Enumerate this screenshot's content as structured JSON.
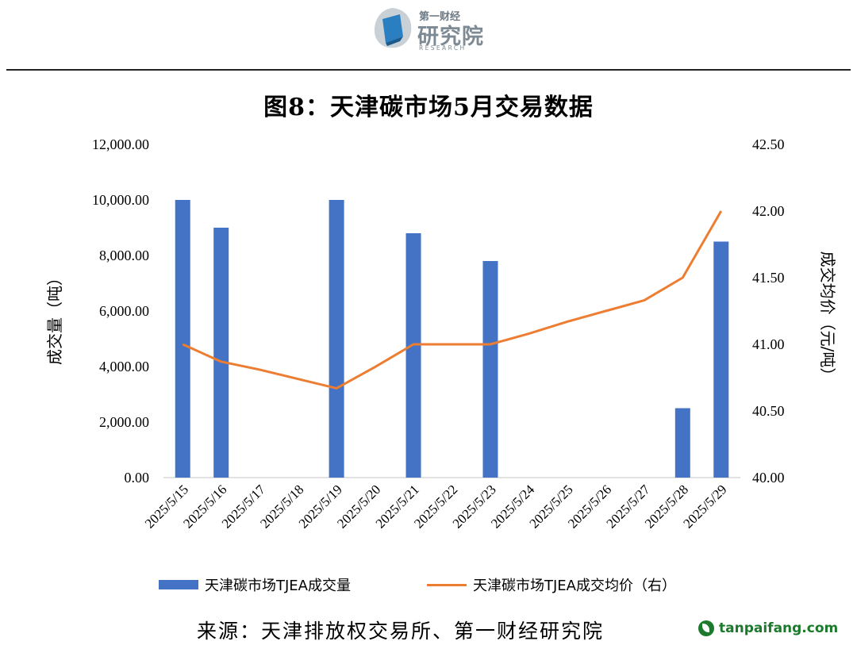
{
  "logo": {
    "small_text": "第一财经",
    "big_text": "研究院",
    "english_text": "RESEARCH"
  },
  "title": "图8：天津碳市场5月交易数据",
  "source": "来源：天津排放权交易所、第一财经研究院",
  "watermark": "tanpaifang.com",
  "colors": {
    "bar": "#4472C4",
    "line": "#ED7D31",
    "rule": "#222222"
  },
  "chart_data": {
    "type": "bar",
    "categories": [
      "2025/5/15",
      "2025/5/16",
      "2025/5/17",
      "2025/5/18",
      "2025/5/19",
      "2025/5/20",
      "2025/5/21",
      "2025/5/22",
      "2025/5/23",
      "2025/5/24",
      "2025/5/25",
      "2025/5/26",
      "2025/5/27",
      "2025/5/28",
      "2025/5/29"
    ],
    "ylabel_left": "成交量（吨）",
    "ylabel_right": "成交均价（元/吨）",
    "ylim_left": [
      0,
      12000
    ],
    "ylim_right": [
      40,
      42.5
    ],
    "yticks_left": [
      "0.00",
      "2,000.00",
      "4,000.00",
      "6,000.00",
      "8,000.00",
      "10,000.00",
      "12,000.00"
    ],
    "yticks_right": [
      "40.00",
      "40.50",
      "41.00",
      "41.50",
      "42.00",
      "42.50"
    ],
    "series": [
      {
        "name": "天津碳市场TJEA成交量",
        "type": "bar",
        "axis": "left",
        "values": [
          10000,
          9000,
          0,
          0,
          10000,
          0,
          8800,
          0,
          7800,
          0,
          0,
          0,
          0,
          2500,
          8500
        ]
      },
      {
        "name": "天津碳市场TJEA成交均价（右）",
        "type": "line",
        "axis": "right",
        "values": [
          41.0,
          40.87,
          40.81,
          40.74,
          40.67,
          40.83,
          41.0,
          41.0,
          41.0,
          41.08,
          41.17,
          41.25,
          41.33,
          41.5,
          42.0
        ]
      }
    ],
    "legend": "bottom",
    "grid": false
  }
}
